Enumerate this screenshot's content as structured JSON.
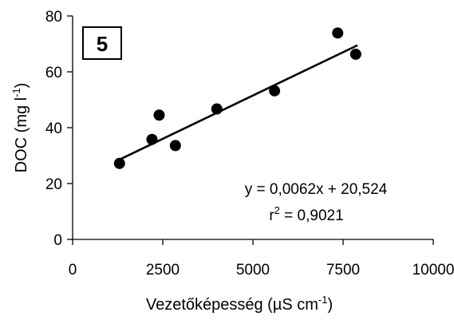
{
  "chart_data": {
    "type": "scatter",
    "panel_label": "5",
    "xlabel": {
      "main": "Vezetőképesség (µS cm",
      "sup": "-1",
      "end": ")"
    },
    "ylabel": {
      "main": "DOC (mg l",
      "sup": "-1",
      "end": ")"
    },
    "xlim": [
      0,
      10000
    ],
    "ylim": [
      0,
      80
    ],
    "xticks": [
      0,
      2500,
      5000,
      7500,
      10000
    ],
    "yticks": [
      0,
      20,
      40,
      60,
      80
    ],
    "xtick_labels": [
      "0",
      "2500",
      "5000",
      "7500",
      "10000"
    ],
    "ytick_labels": [
      "0",
      "20",
      "40",
      "60",
      "80"
    ],
    "grid": false,
    "points": [
      {
        "x": 1300,
        "y": 27.2
      },
      {
        "x": 2200,
        "y": 35.8
      },
      {
        "x": 2400,
        "y": 44.5
      },
      {
        "x": 2850,
        "y": 33.6
      },
      {
        "x": 4000,
        "y": 46.7
      },
      {
        "x": 5600,
        "y": 53.2
      },
      {
        "x": 7350,
        "y": 73.9
      },
      {
        "x": 7850,
        "y": 66.3
      }
    ],
    "trendline": {
      "slope": 0.0062,
      "intercept": 20.524,
      "x_range": [
        1250,
        7900
      ]
    },
    "annotations": {
      "equation": "y = 0,0062x + 20,524",
      "r2_prefix": "r",
      "r2_sup": "2",
      "r2_value": " = 0,9021"
    }
  }
}
